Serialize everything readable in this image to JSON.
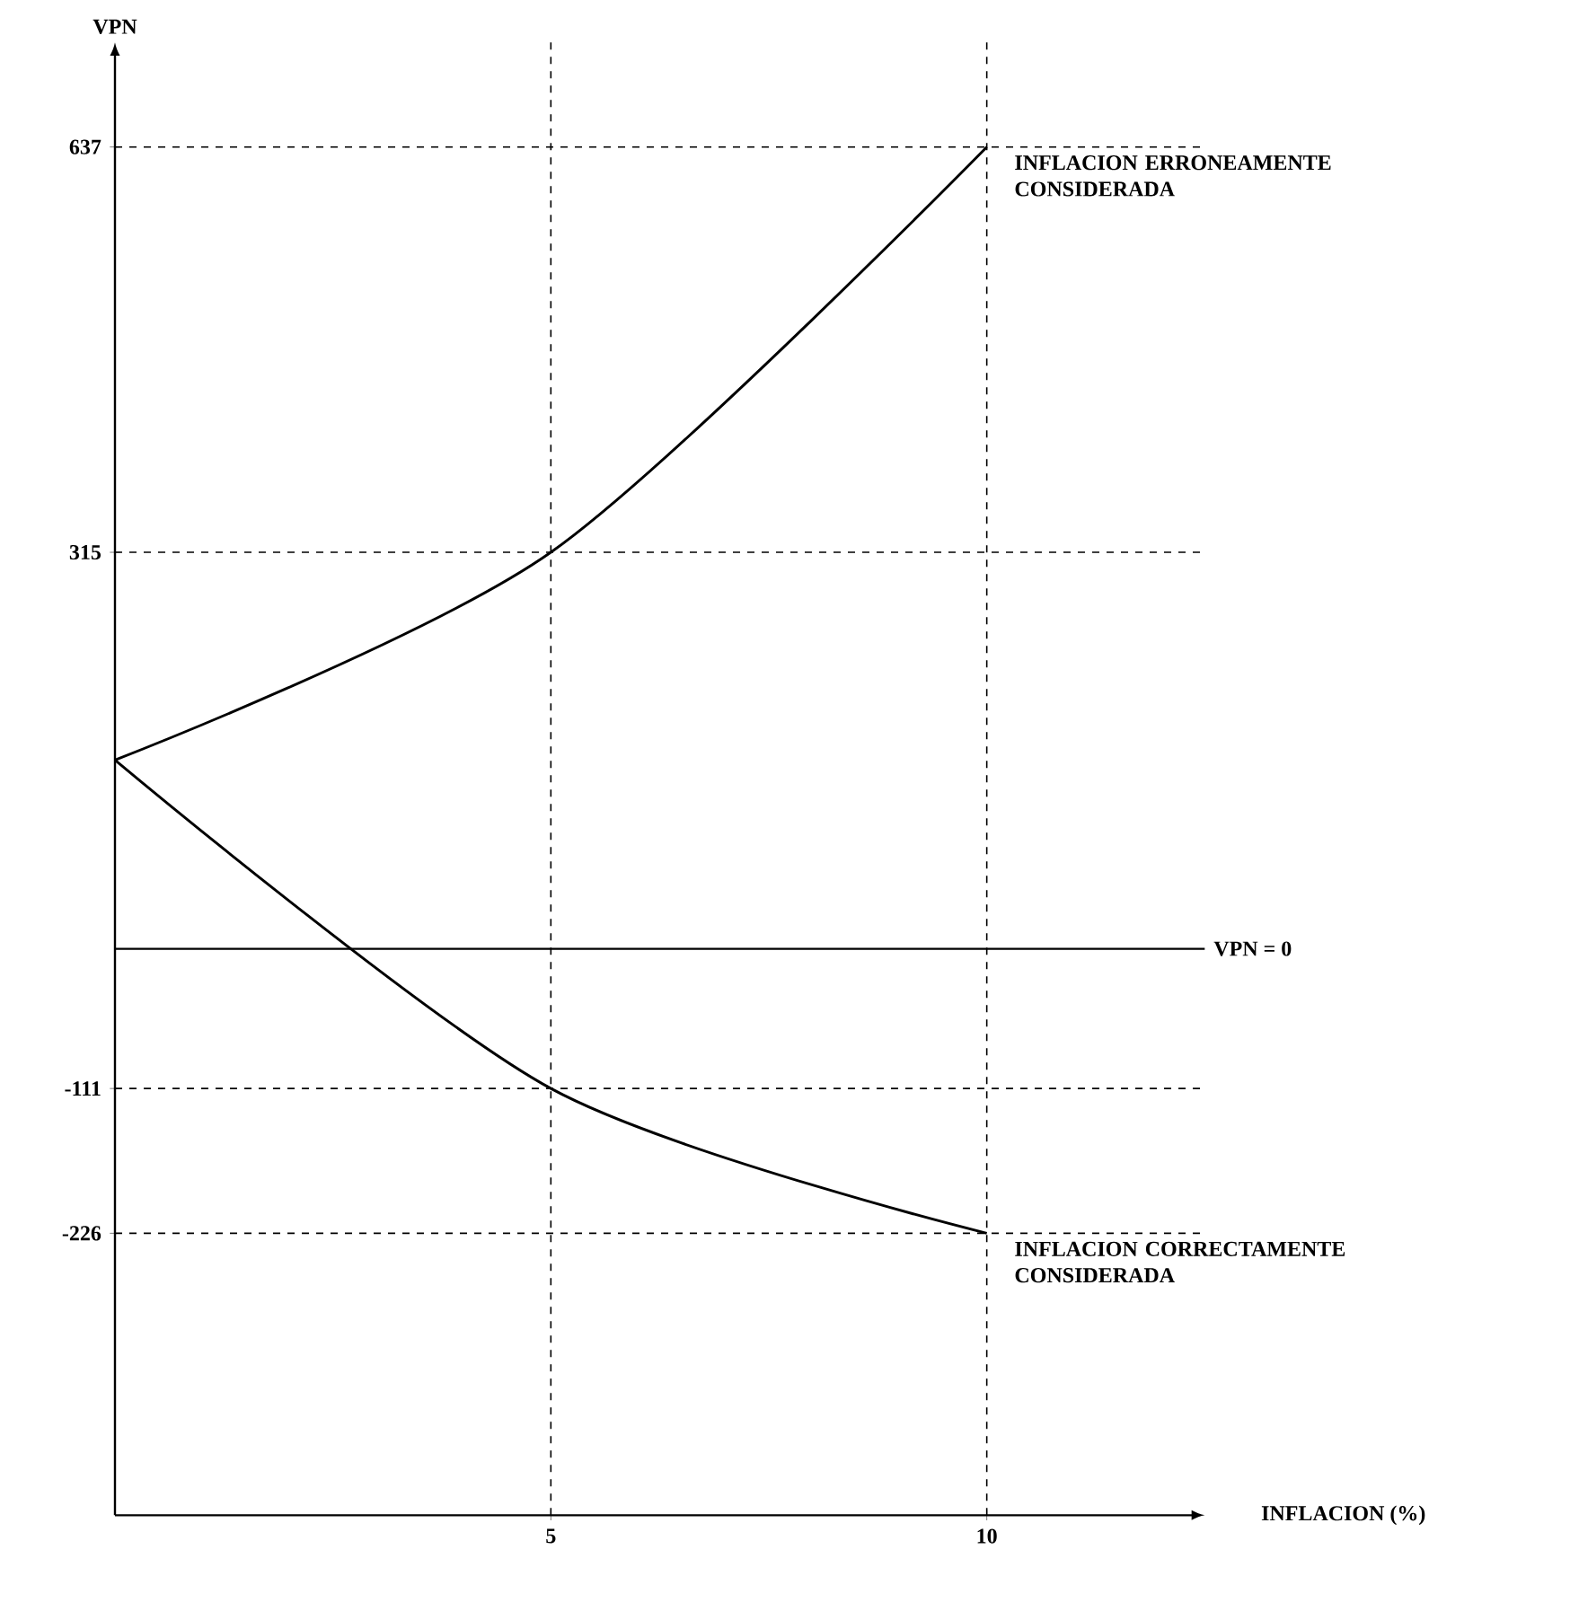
{
  "chart_data": {
    "type": "line",
    "xlabel": "INFLACION (%)",
    "ylabel": "VPN",
    "x": [
      0,
      5,
      10
    ],
    "series": [
      {
        "name": "INFLACION ERRONEAMENTE CONSIDERADA",
        "color": "#000000",
        "values": [
          150,
          315,
          637
        ]
      },
      {
        "name": "INFLACION CORRECTAMENTE CONSIDERADA",
        "color": "#000000",
        "values": [
          150,
          -111,
          -226
        ]
      }
    ],
    "xlim": [
      0,
      12.5
    ],
    "ylim": [
      -450,
      720
    ],
    "xticks": [
      5,
      10
    ],
    "yticks": [
      -226,
      -111,
      315,
      637
    ],
    "grid": true,
    "marker": "none",
    "line_style": "solid",
    "ref_lines": [
      {
        "axis": "y",
        "value": 0,
        "label": "VPN = 0",
        "color": "#000000"
      }
    ]
  }
}
